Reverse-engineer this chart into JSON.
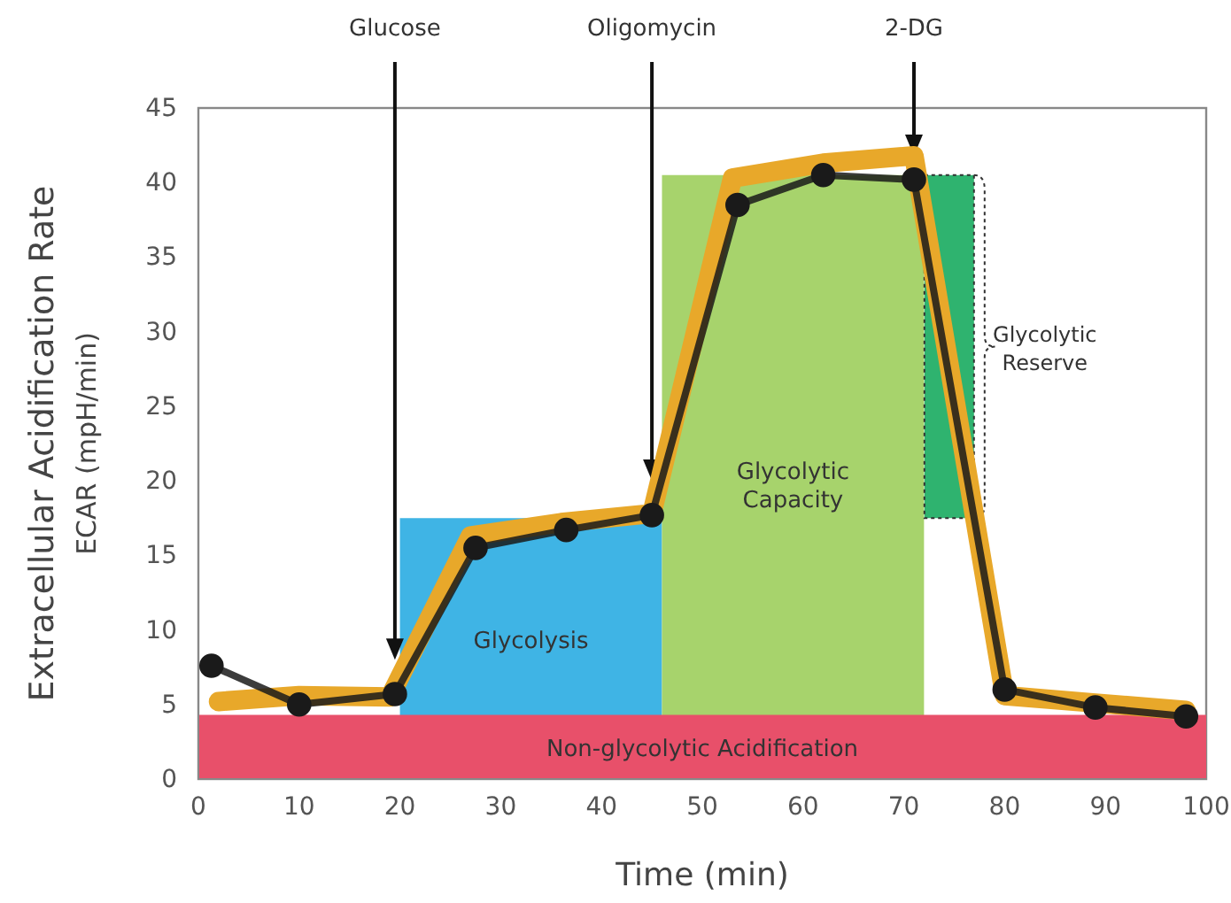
{
  "chart_data": {
    "type": "line",
    "xlabel": "Time (min)",
    "ylabel": "Extracellular Acidification Rate\nECAR (mpH/min)",
    "xlim": [
      0,
      100
    ],
    "xticks": [
      0,
      10,
      20,
      30,
      40,
      50,
      60,
      70,
      80,
      90,
      100
    ],
    "ylim": [
      0,
      45
    ],
    "yticks": [
      0,
      5,
      10,
      15,
      20,
      25,
      30,
      35,
      40,
      45
    ],
    "grid": false,
    "legend": false,
    "series": [
      {
        "type": "area",
        "name": "Glycolysis",
        "color": "#3fb4e5",
        "x": [
          20,
          46
        ],
        "values": [
          17.5,
          17.5
        ]
      },
      {
        "type": "area",
        "name": "Glycolytic\nCapacity",
        "color": "#a7d36c",
        "x": [
          46,
          72
        ],
        "values": [
          40.5,
          40.5
        ]
      },
      {
        "type": "area",
        "name": "Non-glycolytic Acidification",
        "color": "#e8506a",
        "x": [
          0,
          100
        ],
        "values": [
          4.3,
          4.3
        ]
      },
      {
        "type": "bar",
        "name": "Glycolytic\nReserve",
        "color": "#2fb36f",
        "line_style": "dotted",
        "x": [
          74.5
        ],
        "base": [
          17.5
        ],
        "values": [
          23
        ]
      },
      {
        "color": "#e8a82a",
        "marker": "none",
        "x": [
          2,
          10,
          19,
          27,
          36,
          45,
          53,
          62,
          71,
          80,
          89,
          98
        ],
        "values": [
          5.2,
          5.6,
          5.5,
          16.3,
          17.2,
          17.8,
          40.3,
          41.3,
          41.8,
          5.6,
          5.1,
          4.6
        ]
      },
      {
        "color": "#1a1a1a",
        "marker": "circle",
        "x": [
          1.3,
          10,
          19.5,
          27.5,
          36.5,
          45,
          53.5,
          62,
          71,
          80,
          89,
          98
        ],
        "values": [
          7.6,
          5.0,
          5.7,
          15.5,
          16.7,
          17.7,
          38.5,
          40.5,
          40.2,
          6.0,
          4.8,
          4.2
        ]
      }
    ],
    "annotations": [
      {
        "text": "Glucose",
        "x": 19.5,
        "y": 8
      },
      {
        "text": "Oligomycin",
        "x": 45,
        "y": 20
      },
      {
        "text": "2-DG",
        "x": 71,
        "y": 41.8
      }
    ]
  }
}
